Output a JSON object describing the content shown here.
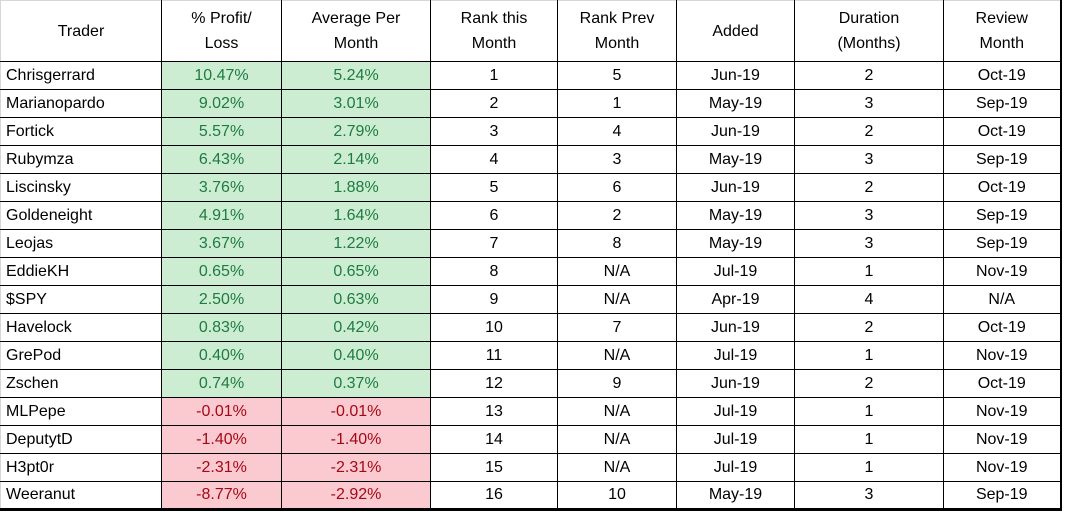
{
  "colors": {
    "background": "#FFFFFF",
    "grid_line": "#000000",
    "outer_faint_line": "#D6D6D6",
    "body_text": "#000000",
    "positive_bg": "#CDEDD3",
    "positive_text": "#1E7B41",
    "negative_bg": "#FBC9D0",
    "negative_text": "#A30915"
  },
  "chart_data": {
    "type": "table",
    "title": "",
    "columns": [
      "Trader",
      "% Profit/Loss",
      "Average Per Month",
      "Rank this Month",
      "Rank Prev Month",
      "Added",
      "Duration (Months)",
      "Review Month"
    ],
    "column_header_lines": [
      [
        "Trader"
      ],
      [
        "% Profit/",
        "Loss"
      ],
      [
        "Average Per",
        "Month"
      ],
      [
        "Rank this",
        "Month"
      ],
      [
        "Rank Prev",
        "Month"
      ],
      [
        "Added"
      ],
      [
        "Duration",
        "(Months)"
      ],
      [
        "Review",
        "Month"
      ]
    ],
    "conditional_format_columns": [
      1,
      2
    ],
    "rows": [
      [
        "Chrisgerrard",
        "10.47%",
        "5.24%",
        "1",
        "5",
        "Jun-19",
        "2",
        "Oct-19"
      ],
      [
        "Marianopardo",
        "9.02%",
        "3.01%",
        "2",
        "1",
        "May-19",
        "3",
        "Sep-19"
      ],
      [
        "Fortick",
        "5.57%",
        "2.79%",
        "3",
        "4",
        "Jun-19",
        "2",
        "Oct-19"
      ],
      [
        "Rubymza",
        "6.43%",
        "2.14%",
        "4",
        "3",
        "May-19",
        "3",
        "Sep-19"
      ],
      [
        "Liscinsky",
        "3.76%",
        "1.88%",
        "5",
        "6",
        "Jun-19",
        "2",
        "Oct-19"
      ],
      [
        "Goldeneight",
        "4.91%",
        "1.64%",
        "6",
        "2",
        "May-19",
        "3",
        "Sep-19"
      ],
      [
        "Leojas",
        "3.67%",
        "1.22%",
        "7",
        "8",
        "May-19",
        "3",
        "Sep-19"
      ],
      [
        "EddieKH",
        "0.65%",
        "0.65%",
        "8",
        "N/A",
        "Jul-19",
        "1",
        "Nov-19"
      ],
      [
        "$SPY",
        "2.50%",
        "0.63%",
        "9",
        "N/A",
        "Apr-19",
        "4",
        "N/A"
      ],
      [
        "Havelock",
        "0.83%",
        "0.42%",
        "10",
        "7",
        "Jun-19",
        "2",
        "Oct-19"
      ],
      [
        "GrePod",
        "0.40%",
        "0.40%",
        "11",
        "N/A",
        "Jul-19",
        "1",
        "Nov-19"
      ],
      [
        "Zschen",
        "0.74%",
        "0.37%",
        "12",
        "9",
        "Jun-19",
        "2",
        "Oct-19"
      ],
      [
        "MLPepe",
        "-0.01%",
        "-0.01%",
        "13",
        "N/A",
        "Jul-19",
        "1",
        "Nov-19"
      ],
      [
        "DeputytD",
        "-1.40%",
        "-1.40%",
        "14",
        "N/A",
        "Jul-19",
        "1",
        "Nov-19"
      ],
      [
        "H3pt0r",
        "-2.31%",
        "-2.31%",
        "15",
        "N/A",
        "Jul-19",
        "1",
        "Nov-19"
      ],
      [
        "Weeranut",
        "-8.77%",
        "-2.92%",
        "16",
        "10",
        "May-19",
        "3",
        "Sep-19"
      ]
    ]
  }
}
